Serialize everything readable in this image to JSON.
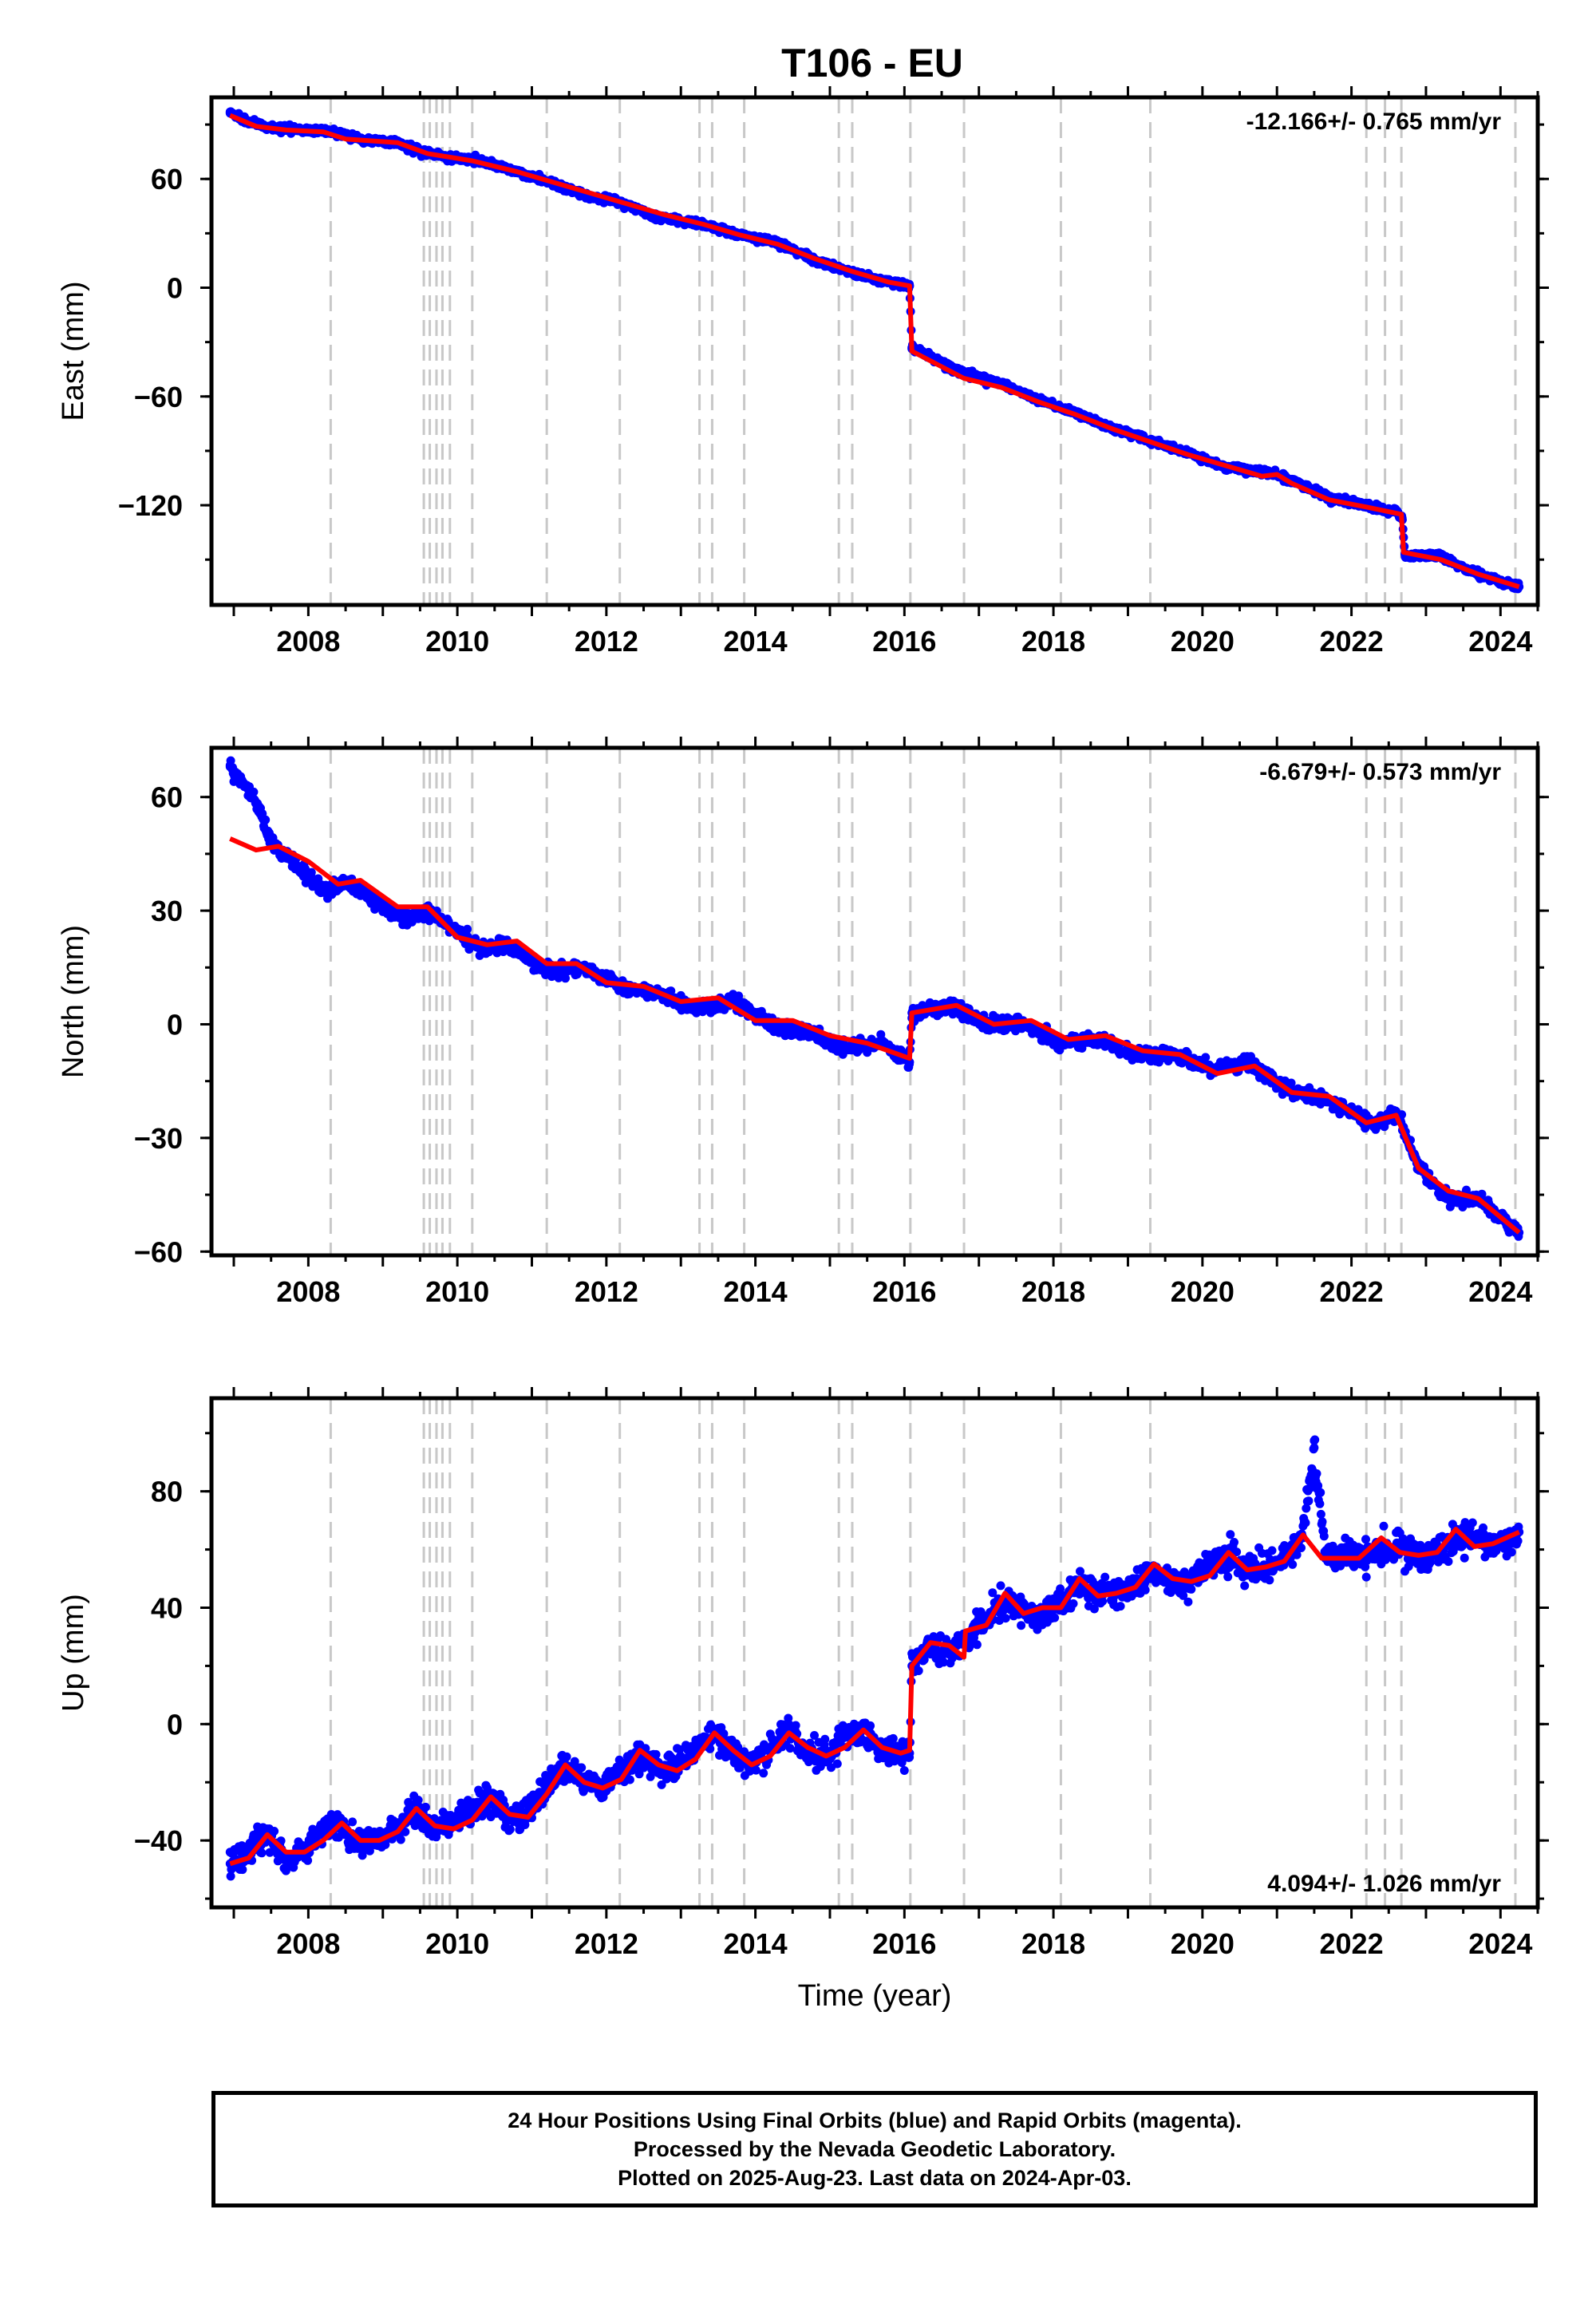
{
  "title": "T106 - EU",
  "colors": {
    "final_orbits": "#0000ff",
    "model": "#ff0000",
    "event_lines": "#c8c8c8",
    "axes": "#000000"
  },
  "chart_data": [
    {
      "type": "scatter",
      "panel": "east",
      "ylabel": "East (mm)",
      "xlabel": "",
      "xlim": [
        2006.7,
        2024.5
      ],
      "ylim": [
        -175,
        105
      ],
      "yticks": [
        60,
        0,
        -60,
        -120
      ],
      "xticks": [
        2008,
        2010,
        2012,
        2014,
        2016,
        2018,
        2020,
        2022,
        2024
      ],
      "rate_label": "-12.166+/- 0.765 mm/yr",
      "rate_position": "top-right",
      "events": [
        2008.3,
        2009.55,
        2009.63,
        2009.72,
        2009.8,
        2009.9,
        2010.2,
        2011.2,
        2012.18,
        2013.25,
        2013.42,
        2013.85,
        2015.12,
        2015.3,
        2016.08,
        2016.8,
        2018.1,
        2019.3,
        2022.2,
        2022.45,
        2022.67,
        2024.2
      ],
      "series": [
        {
          "name": "24 Hour Positions (Final Orbits)",
          "marker": "dot",
          "x": [
            2006.95,
            2007.2,
            2007.5,
            2008.0,
            2008.3,
            2008.8,
            2009.2,
            2009.6,
            2010.0,
            2010.3,
            2010.7,
            2011.2,
            2011.7,
            2012.2,
            2012.7,
            2013.3,
            2013.8,
            2014.3,
            2014.8,
            2015.3,
            2015.8,
            2016.07,
            2016.1,
            2016.5,
            2016.8,
            2017.3,
            2017.8,
            2018.3,
            2018.8,
            2019.3,
            2019.8,
            2020.3,
            2020.9,
            2021.2,
            2021.7,
            2022.2,
            2022.6,
            2022.68,
            2022.72,
            2023.2,
            2023.7,
            2024.25
          ],
          "y": [
            97,
            91,
            88,
            87,
            86,
            81,
            80,
            74,
            71,
            70,
            65,
            59,
            51,
            47,
            39,
            35,
            29,
            25,
            15,
            8,
            3,
            1,
            -33,
            -42,
            -47,
            -53,
            -62,
            -69,
            -78,
            -84,
            -91,
            -99,
            -102,
            -106,
            -116,
            -120,
            -124,
            -127,
            -148,
            -148,
            -158,
            -165
          ]
        },
        {
          "name": "Model",
          "marker": "line",
          "x": [
            2006.95,
            2007.3,
            2007.7,
            2008.2,
            2008.5,
            2009.2,
            2009.6,
            2010.2,
            2010.8,
            2011.3,
            2011.8,
            2012.3,
            2012.8,
            2013.3,
            2013.8,
            2014.3,
            2014.8,
            2015.3,
            2015.8,
            2016.07,
            2016.1,
            2016.8,
            2017.3,
            2017.8,
            2018.3,
            2018.8,
            2019.3,
            2019.8,
            2020.3,
            2020.8,
            2021.0,
            2021.2,
            2021.7,
            2022.2,
            2022.67,
            2022.7,
            2023.2,
            2023.7,
            2024.25
          ],
          "y": [
            95,
            89,
            87,
            86,
            82,
            80,
            74,
            70,
            64,
            58,
            52,
            46,
            40,
            35,
            29,
            24,
            16,
            9,
            3,
            1,
            -35,
            -50,
            -55,
            -63,
            -70,
            -78,
            -85,
            -92,
            -98,
            -104,
            -103,
            -108,
            -117,
            -121,
            -125,
            -146,
            -150,
            -158,
            -165
          ]
        }
      ]
    },
    {
      "type": "scatter",
      "panel": "north",
      "ylabel": "North (mm)",
      "xlabel": "",
      "xlim": [
        2006.7,
        2024.5
      ],
      "ylim": [
        -61,
        73
      ],
      "yticks": [
        60,
        30,
        0,
        -30,
        -60
      ],
      "xticks": [
        2008,
        2010,
        2012,
        2014,
        2016,
        2018,
        2020,
        2022,
        2024
      ],
      "rate_label": "-6.679+/- 0.573 mm/yr",
      "rate_position": "top-right",
      "events": [
        2008.3,
        2009.55,
        2009.63,
        2009.72,
        2009.8,
        2009.9,
        2010.2,
        2011.2,
        2012.18,
        2013.25,
        2013.42,
        2013.85,
        2015.12,
        2015.3,
        2016.08,
        2016.8,
        2018.1,
        2019.3,
        2022.2,
        2022.45,
        2022.67,
        2024.2
      ],
      "series": [
        {
          "name": "24 Hour Positions (Final Orbits)",
          "marker": "dot",
          "x": [
            2006.95,
            2007.05,
            2007.2,
            2007.35,
            2007.5,
            2007.8,
            2008.2,
            2008.5,
            2008.9,
            2009.3,
            2009.6,
            2010.0,
            2010.3,
            2010.7,
            2011.2,
            2011.7,
            2012.2,
            2012.7,
            2013.2,
            2013.7,
            2014.2,
            2014.7,
            2015.2,
            2015.7,
            2016.07,
            2016.1,
            2016.6,
            2017.1,
            2017.6,
            2018.1,
            2018.6,
            2019.1,
            2019.6,
            2020.1,
            2020.6,
            2021.1,
            2021.5,
            2021.9,
            2022.3,
            2022.6,
            2022.9,
            2023.3,
            2023.7,
            2024.25
          ],
          "y": [
            68,
            65,
            62,
            57,
            48,
            43,
            35,
            38,
            32,
            28,
            30,
            24,
            20,
            21,
            14,
            15,
            10,
            8,
            4,
            6,
            0,
            -2,
            -6,
            -5,
            -10,
            3,
            5,
            0,
            0,
            -5,
            -4,
            -8,
            -8,
            -12,
            -10,
            -17,
            -19,
            -22,
            -27,
            -23,
            -38,
            -46,
            -46,
            -55
          ]
        },
        {
          "name": "Model",
          "marker": "line",
          "x": [
            2006.95,
            2007.3,
            2007.6,
            2008.0,
            2008.4,
            2008.7,
            2009.2,
            2009.6,
            2010.0,
            2010.4,
            2010.8,
            2011.2,
            2011.6,
            2012.0,
            2012.5,
            2013.0,
            2013.5,
            2014.0,
            2014.5,
            2015.0,
            2015.5,
            2016.07,
            2016.1,
            2016.7,
            2017.2,
            2017.7,
            2018.2,
            2018.7,
            2019.2,
            2019.7,
            2020.2,
            2020.7,
            2021.2,
            2021.7,
            2022.2,
            2022.6,
            2022.9,
            2023.3,
            2023.7,
            2024.25
          ],
          "y": [
            49,
            46,
            47,
            43,
            37,
            38,
            31,
            31,
            23,
            21,
            22,
            16,
            16,
            11,
            10,
            6,
            7,
            1,
            1,
            -3,
            -5,
            -9,
            3,
            5,
            0,
            1,
            -4,
            -3,
            -7,
            -8,
            -13,
            -11,
            -18,
            -19,
            -26,
            -24,
            -38,
            -44,
            -46,
            -55
          ]
        }
      ]
    },
    {
      "type": "scatter",
      "panel": "up",
      "ylabel": "Up (mm)",
      "xlabel": "Time (year)",
      "xlim": [
        2006.7,
        2024.5
      ],
      "ylim": [
        -63,
        112
      ],
      "yticks": [
        80,
        40,
        0,
        -40
      ],
      "xticks": [
        2008,
        2010,
        2012,
        2014,
        2016,
        2018,
        2020,
        2022,
        2024
      ],
      "rate_label": "4.094+/- 1.026 mm/yr",
      "rate_position": "bottom-right",
      "events": [
        2008.3,
        2009.55,
        2009.63,
        2009.72,
        2009.8,
        2009.9,
        2010.2,
        2011.2,
        2012.18,
        2013.25,
        2013.42,
        2013.85,
        2015.12,
        2015.3,
        2016.08,
        2016.8,
        2018.1,
        2019.3,
        2022.2,
        2022.45,
        2022.67,
        2024.2
      ],
      "series": [
        {
          "name": "24 Hour Positions (Final Orbits)",
          "marker": "dot",
          "x": [
            2006.95,
            2007.2,
            2007.45,
            2007.7,
            2007.95,
            2008.2,
            2008.45,
            2008.7,
            2008.95,
            2009.2,
            2009.45,
            2009.7,
            2009.95,
            2010.2,
            2010.45,
            2010.7,
            2010.95,
            2011.2,
            2011.45,
            2011.7,
            2011.95,
            2012.2,
            2012.45,
            2012.7,
            2012.95,
            2013.2,
            2013.45,
            2013.7,
            2013.95,
            2014.2,
            2014.45,
            2014.7,
            2014.95,
            2015.2,
            2015.45,
            2015.7,
            2015.95,
            2016.07,
            2016.1,
            2016.35,
            2016.6,
            2016.85,
            2017.1,
            2017.35,
            2017.6,
            2017.85,
            2018.1,
            2018.35,
            2018.6,
            2018.85,
            2019.1,
            2019.35,
            2019.6,
            2019.85,
            2020.1,
            2020.35,
            2020.6,
            2020.85,
            2021.1,
            2021.35,
            2021.5,
            2021.65,
            2021.9,
            2022.15,
            2022.4,
            2022.65,
            2022.9,
            2023.15,
            2023.4,
            2023.65,
            2023.9,
            2024.25
          ],
          "y": [
            -48,
            -44,
            -38,
            -46,
            -44,
            -36,
            -34,
            -42,
            -40,
            -35,
            -30,
            -36,
            -34,
            -30,
            -25,
            -33,
            -30,
            -22,
            -14,
            -20,
            -22,
            -16,
            -10,
            -15,
            -15,
            -8,
            -3,
            -10,
            -14,
            -8,
            -2,
            -10,
            -11,
            -4,
            -2,
            -8,
            -10,
            -10,
            20,
            28,
            24,
            30,
            36,
            42,
            40,
            38,
            42,
            48,
            44,
            45,
            48,
            54,
            48,
            49,
            55,
            58,
            54,
            54,
            57,
            64,
            95,
            58,
            58,
            57,
            60,
            62,
            58,
            60,
            63,
            65,
            60,
            66
          ]
        },
        {
          "name": "Model",
          "marker": "line",
          "x": [
            2006.95,
            2007.2,
            2007.45,
            2007.7,
            2007.95,
            2008.2,
            2008.45,
            2008.7,
            2008.95,
            2009.2,
            2009.45,
            2009.7,
            2009.95,
            2010.2,
            2010.45,
            2010.7,
            2010.95,
            2011.2,
            2011.45,
            2011.7,
            2011.95,
            2012.2,
            2012.45,
            2012.7,
            2012.95,
            2013.2,
            2013.45,
            2013.7,
            2013.95,
            2014.2,
            2014.45,
            2014.7,
            2014.95,
            2015.2,
            2015.45,
            2015.7,
            2015.95,
            2016.07,
            2016.1,
            2016.35,
            2016.6,
            2016.8,
            2016.82,
            2017.1,
            2017.35,
            2017.6,
            2017.85,
            2018.1,
            2018.35,
            2018.6,
            2018.85,
            2019.1,
            2019.35,
            2019.6,
            2019.85,
            2020.1,
            2020.35,
            2020.6,
            2020.85,
            2021.1,
            2021.35,
            2021.6,
            2021.85,
            2022.1,
            2022.4,
            2022.65,
            2022.9,
            2023.15,
            2023.4,
            2023.65,
            2023.9,
            2024.25
          ],
          "y": [
            -48,
            -46,
            -38,
            -44,
            -44,
            -40,
            -34,
            -40,
            -40,
            -37,
            -29,
            -35,
            -36,
            -33,
            -25,
            -31,
            -32,
            -24,
            -14,
            -20,
            -22,
            -19,
            -9,
            -14,
            -16,
            -12,
            -3,
            -9,
            -14,
            -11,
            -3,
            -8,
            -11,
            -8,
            -2,
            -8,
            -10,
            -9,
            20,
            28,
            27,
            23,
            32,
            34,
            45,
            38,
            40,
            40,
            50,
            44,
            45,
            47,
            55,
            50,
            49,
            51,
            59,
            53,
            54,
            56,
            65,
            57,
            57,
            57,
            64,
            59,
            58,
            59,
            67,
            61,
            62,
            66
          ]
        }
      ]
    }
  ],
  "footer": {
    "line1": "24 Hour Positions Using Final Orbits (blue) and Rapid Orbits (magenta).",
    "line2": "Processed by the Nevada Geodetic Laboratory.",
    "line3": "Plotted on 2025-Aug-23. Last data on 2024-Apr-03."
  }
}
